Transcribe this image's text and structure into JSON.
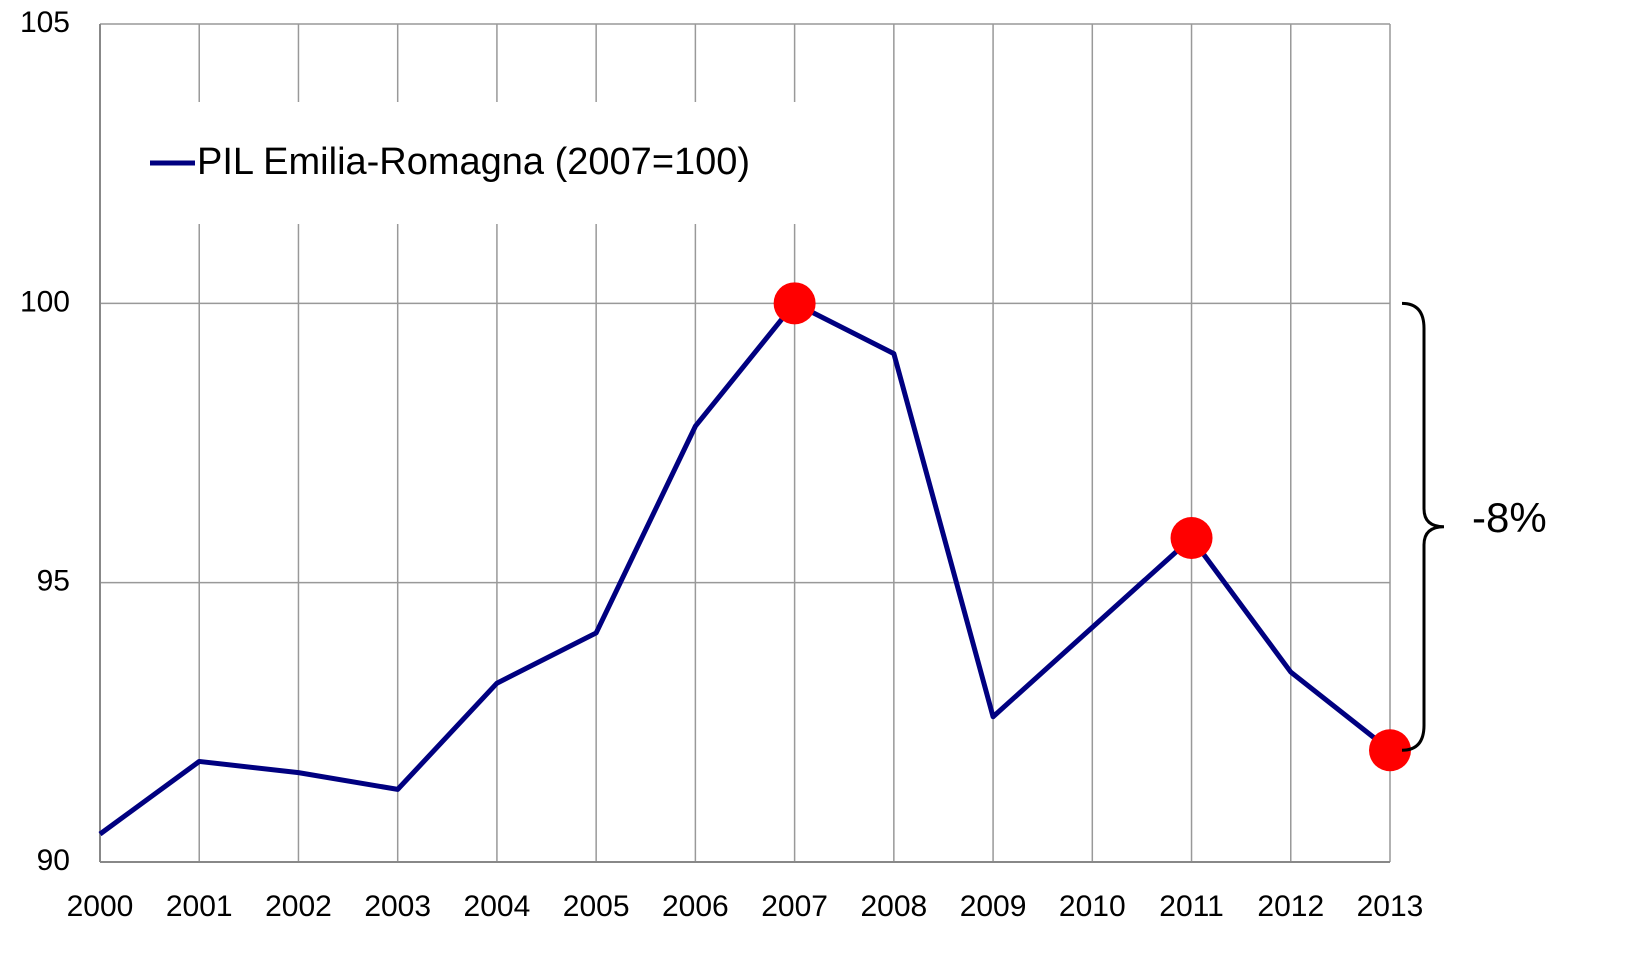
{
  "chart_data": {
    "type": "line",
    "categories": [
      "2000",
      "2001",
      "2002",
      "2003",
      "2004",
      "2005",
      "2006",
      "2007",
      "2008",
      "2009",
      "2010",
      "2011",
      "2012",
      "2013"
    ],
    "series": [
      {
        "name": "PIL Emilia-Romagna (2007=100)",
        "color": "#000080",
        "values": [
          90.5,
          91.8,
          91.6,
          91.3,
          93.2,
          94.1,
          97.8,
          100,
          99.1,
          92.6,
          94.2,
          95.8,
          93.4,
          92.0
        ]
      }
    ],
    "ylim": [
      90,
      105
    ],
    "yticks": [
      90,
      95,
      100,
      105
    ],
    "grid": true,
    "legend": "top-left",
    "highlight_indices": [
      7,
      11,
      13
    ],
    "highlight_color": "#ff0000",
    "annotation": "-8%"
  }
}
